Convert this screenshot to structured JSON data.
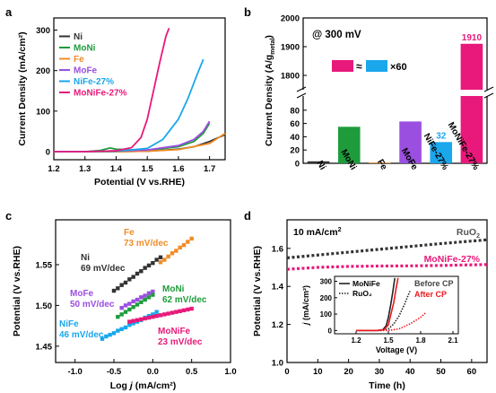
{
  "chart_data": [
    {
      "type": "line",
      "panel_label": "a",
      "xlabel": "Potential (V vs.RHE)",
      "ylabel": "Current Density (mA/cm²)",
      "xlim": [
        1.2,
        1.75
      ],
      "ylim": [
        -20,
        330
      ],
      "xticks": [
        1.2,
        1.3,
        1.4,
        1.5,
        1.6,
        1.7
      ],
      "yticks": [
        0,
        100,
        200,
        300
      ],
      "legend_placement": "top-left",
      "series": [
        {
          "name": "Ni",
          "color": "#333333",
          "x": [
            1.2,
            1.3,
            1.4,
            1.5,
            1.6,
            1.65,
            1.7,
            1.75
          ],
          "y": [
            0,
            0,
            0,
            1,
            6,
            12,
            25,
            42
          ]
        },
        {
          "name": "MoNi",
          "color": "#1e9c3c",
          "x": [
            1.2,
            1.3,
            1.35,
            1.38,
            1.4,
            1.5,
            1.6,
            1.65,
            1.68,
            1.7
          ],
          "y": [
            0,
            0,
            3,
            9,
            6,
            3,
            12,
            25,
            45,
            70
          ]
        },
        {
          "name": "Fe",
          "color": "#f08c28",
          "x": [
            1.2,
            1.3,
            1.4,
            1.5,
            1.6,
            1.7,
            1.75
          ],
          "y": [
            0,
            0,
            0,
            1,
            5,
            20,
            45
          ]
        },
        {
          "name": "MoFe",
          "color": "#9b4fe0",
          "x": [
            1.2,
            1.3,
            1.4,
            1.5,
            1.6,
            1.65,
            1.68,
            1.7
          ],
          "y": [
            0,
            0,
            2,
            4,
            15,
            30,
            50,
            75
          ]
        },
        {
          "name": "NiFe-27%",
          "color": "#1aa7ec",
          "x": [
            1.2,
            1.3,
            1.4,
            1.5,
            1.55,
            1.6,
            1.63,
            1.66,
            1.68
          ],
          "y": [
            0,
            0,
            1,
            8,
            30,
            80,
            130,
            190,
            228
          ]
        },
        {
          "name": "MoNiFe-27%",
          "color": "#e8197a",
          "x": [
            1.2,
            1.3,
            1.4,
            1.45,
            1.48,
            1.5,
            1.52,
            1.54,
            1.56,
            1.57
          ],
          "y": [
            0,
            0,
            2,
            10,
            35,
            80,
            150,
            220,
            285,
            305
          ]
        }
      ]
    },
    {
      "type": "bar",
      "panel_label": "b",
      "annotation": "@ 300 mV",
      "legend_text_1": "≈",
      "legend_text_2": "×60",
      "categories": [
        "Ni",
        "MoNi",
        "Fe",
        "MoFe",
        "NiFe-27%",
        "MoNiFe-27%"
      ],
      "values": [
        3,
        55,
        1,
        63,
        32,
        1910
      ],
      "colors": [
        "#333333",
        "#1e9c3c",
        "#f08c28",
        "#9b4fe0",
        "#1aa7ec",
        "#e8197a"
      ],
      "value_labels": [
        "",
        "",
        "",
        "",
        "32",
        "1910"
      ],
      "ylabel": "Current Density (A/g",
      "ylabel_sub": "metal",
      "ylabel_end": ")",
      "y_break": true,
      "lower_ylim": [
        0,
        100
      ],
      "upper_ylim": [
        1750,
        2000
      ],
      "yticks_lower": [
        0,
        20,
        40,
        60,
        80
      ],
      "yticks_upper": [
        1800,
        1900,
        2000
      ]
    },
    {
      "type": "scatter",
      "panel_label": "c",
      "xlabel": "Log j (mA/cm²)",
      "ylabel": "Potential (V vs.RHE)",
      "xlim": [
        -1.25,
        1.0
      ],
      "ylim": [
        1.43,
        1.605
      ],
      "xticks": [
        -1.0,
        -0.5,
        0.0,
        0.5,
        1.0
      ],
      "yticks": [
        1.45,
        1.5,
        1.55
      ],
      "series": [
        {
          "name": "Ni",
          "tafel": "69 mV/dec",
          "color": "#333333",
          "x": [
            -0.5,
            -0.45,
            -0.4,
            -0.35,
            -0.3,
            -0.25,
            -0.2,
            -0.15,
            -0.1,
            -0.05,
            0.0,
            0.05,
            0.1
          ],
          "y": [
            1.518,
            1.521,
            1.525,
            1.528,
            1.532,
            1.535,
            1.539,
            1.542,
            1.546,
            1.549,
            1.552,
            1.556,
            1.559
          ]
        },
        {
          "name": "Fe",
          "tafel": "73 mV/dec",
          "color": "#f08c28",
          "x": [
            0.1,
            0.15,
            0.2,
            0.25,
            0.3,
            0.35,
            0.4,
            0.45,
            0.5
          ],
          "y": [
            1.553,
            1.556,
            1.56,
            1.564,
            1.567,
            1.571,
            1.574,
            1.578,
            1.582
          ]
        },
        {
          "name": "MoFe",
          "tafel": "50 mV/dec",
          "color": "#9b4fe0",
          "x": [
            -0.4,
            -0.35,
            -0.3,
            -0.25,
            -0.2,
            -0.15,
            -0.1,
            -0.05,
            0.0
          ],
          "y": [
            1.497,
            1.5,
            1.502,
            1.505,
            1.507,
            1.51,
            1.512,
            1.515,
            1.517
          ]
        },
        {
          "name": "MoNi",
          "tafel": "62 mV/dec",
          "color": "#1e9c3c",
          "x": [
            -0.45,
            -0.4,
            -0.35,
            -0.3,
            -0.25,
            -0.2,
            -0.15,
            -0.1,
            -0.05,
            0.0
          ],
          "y": [
            1.486,
            1.489,
            1.492,
            1.495,
            1.498,
            1.501,
            1.504,
            1.507,
            1.51,
            1.513
          ]
        },
        {
          "name": "NiFe",
          "tafel": "46 mV/dec",
          "color": "#1aa7ec",
          "x": [
            -0.65,
            -0.6,
            -0.55,
            -0.5,
            -0.45,
            -0.4,
            -0.35,
            -0.3,
            -0.25,
            -0.2,
            -0.15,
            -0.1,
            -0.05,
            0.0,
            0.05
          ],
          "y": [
            1.459,
            1.462,
            1.464,
            1.466,
            1.469,
            1.471,
            1.473,
            1.476,
            1.478,
            1.48,
            1.482,
            1.485,
            1.487,
            1.489,
            1.492
          ]
        },
        {
          "name": "MoNiFe",
          "tafel": "23 mV/dec",
          "color": "#e8197a",
          "x": [
            -0.3,
            -0.25,
            -0.2,
            -0.15,
            -0.1,
            -0.05,
            0.0,
            0.05,
            0.1,
            0.15,
            0.2,
            0.25,
            0.3,
            0.35,
            0.4,
            0.45,
            0.5
          ],
          "y": [
            1.48,
            1.481,
            1.482,
            1.483,
            1.484,
            1.485,
            1.486,
            1.487,
            1.488,
            1.489,
            1.49,
            1.491,
            1.492,
            1.493,
            1.494,
            1.495,
            1.496
          ]
        }
      ]
    },
    {
      "type": "line",
      "panel_label": "d",
      "annotation": "10 mA/cm²",
      "xlabel": "Time (h)",
      "ylabel": "Potential (V vs.RHE)",
      "xlim": [
        0,
        65
      ],
      "ylim": [
        1.0,
        1.75
      ],
      "xticks": [
        0,
        10,
        20,
        30,
        40,
        50,
        60
      ],
      "yticks": [
        1.0,
        1.2,
        1.4,
        1.6
      ],
      "series": [
        {
          "name": "RuO₂",
          "color": "#333333",
          "x": [
            0,
            10,
            20,
            30,
            40,
            50,
            65
          ],
          "y": [
            1.55,
            1.565,
            1.58,
            1.595,
            1.61,
            1.625,
            1.645
          ]
        },
        {
          "name": "MoNiFe-27%",
          "color": "#e8197a",
          "x": [
            0,
            10,
            20,
            30,
            40,
            50,
            65
          ],
          "y": [
            1.49,
            1.5,
            1.505,
            1.507,
            1.508,
            1.51,
            1.515
          ]
        }
      ],
      "inset": {
        "xlabel": "Voltage (V)",
        "ylabel": "j (mA/cm²)",
        "xlim": [
          1.0,
          2.15
        ],
        "ylim": [
          -20,
          330
        ],
        "xticks": [
          1.2,
          1.5,
          1.8,
          2.1
        ],
        "yticks": [
          0,
          100,
          200,
          300
        ],
        "legend": [
          "MoNiFe",
          "RuO₂",
          "Before CP",
          "After CP"
        ],
        "series": [
          {
            "name": "MoNiFe-before",
            "color": "#222222",
            "style": "solid",
            "x": [
              1.2,
              1.4,
              1.45,
              1.48,
              1.5,
              1.52,
              1.54,
              1.56
            ],
            "y": [
              0,
              0,
              5,
              30,
              80,
              150,
              230,
              320
            ]
          },
          {
            "name": "MoNiFe-after",
            "color": "#e8191e",
            "style": "solid",
            "x": [
              1.2,
              1.4,
              1.46,
              1.5,
              1.52,
              1.55,
              1.57,
              1.59
            ],
            "y": [
              0,
              0,
              5,
              35,
              90,
              170,
              250,
              320
            ]
          },
          {
            "name": "RuO2-before",
            "color": "#222222",
            "style": "dotted",
            "x": [
              1.2,
              1.45,
              1.5,
              1.55,
              1.6,
              1.65,
              1.7
            ],
            "y": [
              0,
              0,
              10,
              40,
              90,
              160,
              240
            ]
          },
          {
            "name": "RuO2-after",
            "color": "#e8191e",
            "style": "dotted",
            "x": [
              1.2,
              1.5,
              1.6,
              1.7,
              1.8,
              1.85
            ],
            "y": [
              0,
              0,
              10,
              40,
              80,
              110
            ]
          }
        ]
      }
    }
  ],
  "text": {
    "a_legend": [
      "Ni",
      "MoNi",
      "Fe",
      "MoFe",
      "NiFe-27%",
      "MoNiFe-27%"
    ],
    "d_ruo2_label": "RuO",
    "d_ruo2_sub": "2",
    "d_monife_label": "MoNiFe-27%"
  }
}
